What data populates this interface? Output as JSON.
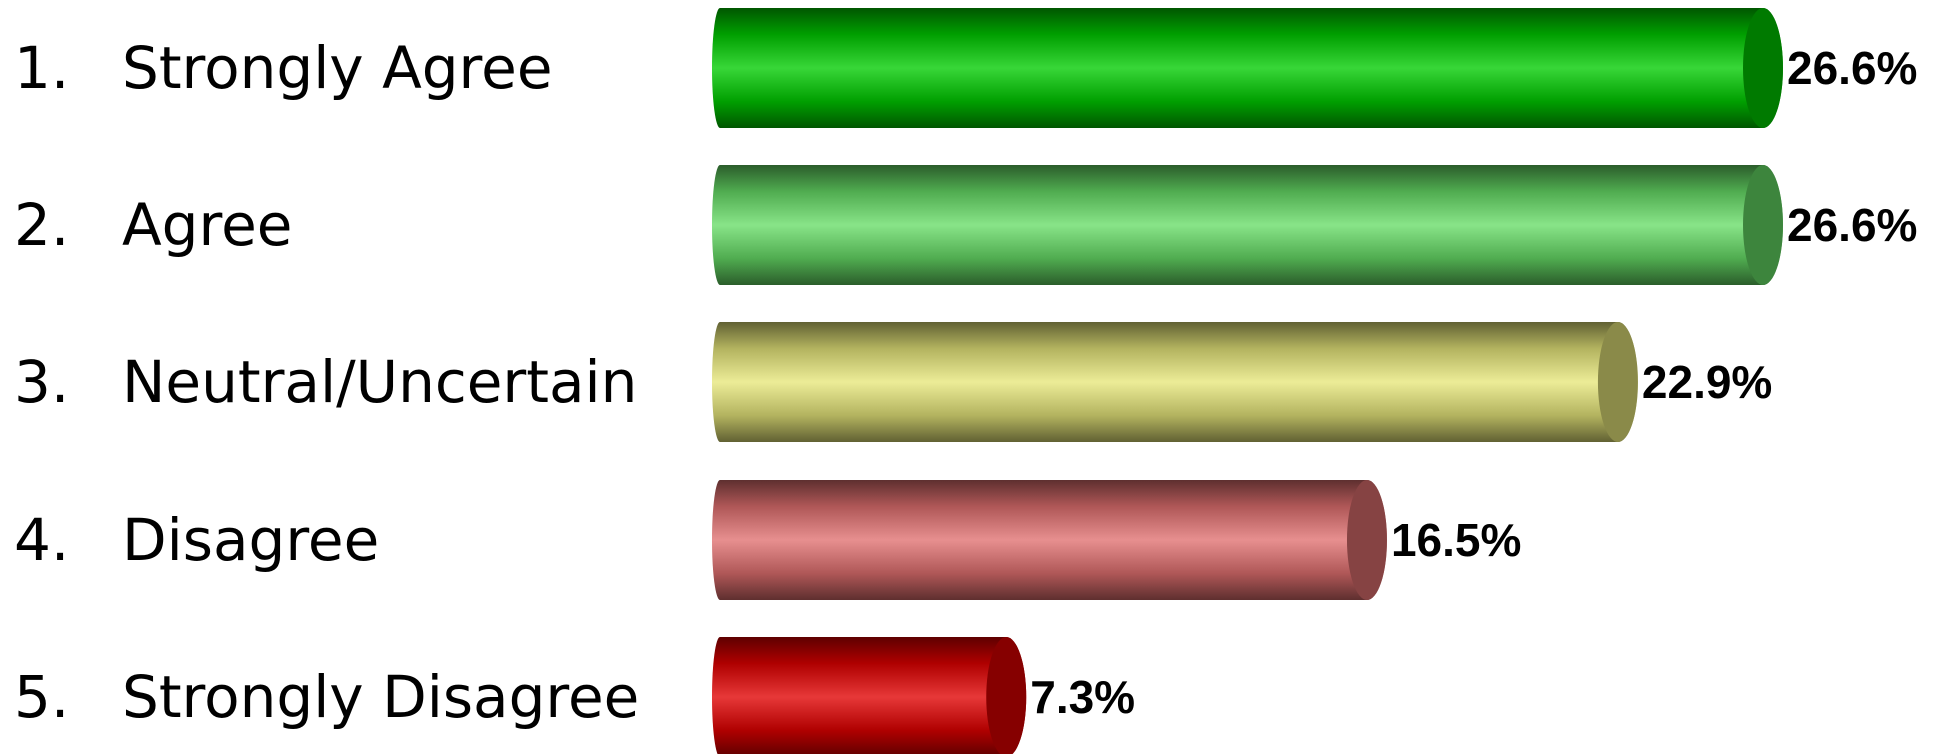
{
  "chart_data": {
    "type": "bar",
    "orientation": "horizontal",
    "bar_style": "3d-cylinder",
    "grid": false,
    "legend": "none",
    "title": "",
    "xlabel": "",
    "ylabel": "",
    "xlim": [
      0,
      26.6
    ],
    "numbers": [
      "1.",
      "2.",
      "3.",
      "4.",
      "5."
    ],
    "categories": [
      "Strongly Agree",
      "Agree",
      "Neutral/Uncertain",
      "Disagree",
      "Strongly Disagree"
    ],
    "values": [
      26.6,
      26.6,
      22.9,
      16.5,
      7.3
    ],
    "value_labels": [
      "26.6%",
      "26.6%",
      "22.9%",
      "16.5%",
      "7.3%"
    ],
    "colors": [
      "#00CC00",
      "#66DD66",
      "#E6E67A",
      "#E07070",
      "#E00000"
    ]
  }
}
